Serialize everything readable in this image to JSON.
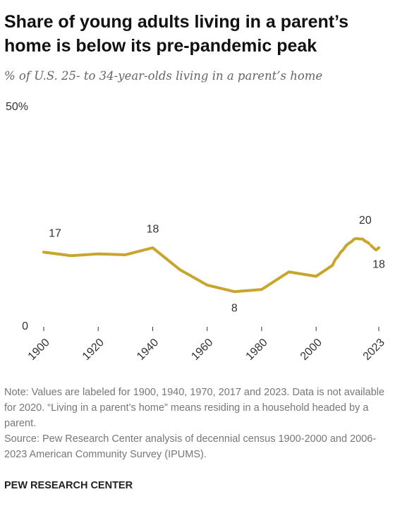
{
  "chart_data": {
    "type": "line",
    "title": "Share of young adults living in a parent’s home is below its pre-pandemic peak",
    "subtitle": "% of U.S. 25- to 34-year-olds living in a parent’s home",
    "x": [
      1900,
      1910,
      1920,
      1930,
      1940,
      1950,
      1960,
      1970,
      1980,
      1990,
      2000,
      2006,
      2007,
      2008,
      2009,
      2010,
      2011,
      2012,
      2013,
      2014,
      2015,
      2016,
      2017,
      2018,
      2019,
      2020,
      2021,
      2022,
      2023
    ],
    "series": [
      {
        "name": "Living in a parent’s home",
        "color": "#c8a52c",
        "values": [
          17,
          16.2,
          16.6,
          16.4,
          18,
          13,
          9.5,
          8,
          8.5,
          12.5,
          11.5,
          14,
          15.3,
          16,
          17,
          17.6,
          18.5,
          19,
          19.4,
          20,
          20.1,
          20,
          20,
          19.5,
          19.2,
          null,
          18,
          17.5,
          18
        ]
      }
    ],
    "labeled_x": [
      1900,
      1940,
      1970,
      2017,
      2023
    ],
    "xlim": [
      1900,
      2023
    ],
    "xticks": [
      1900,
      1920,
      1940,
      1960,
      1980,
      2000,
      2023
    ],
    "ylim": [
      0,
      50
    ],
    "yticks": [
      0,
      {
        "value": 50,
        "label": "50%"
      }
    ],
    "grid": false,
    "notes": [
      "Note: Values are labeled for 1900, 1940, 1970, 2017 and 2023. Data is not available for 2020. “Living in a parent’s home” means residing in a household headed by a parent.",
      "Source: Pew Research Center analysis of decennial census 1900-2000 and 2006-2023 American Community Survey (IPUMS)."
    ],
    "credit": "PEW RESEARCH CENTER"
  }
}
